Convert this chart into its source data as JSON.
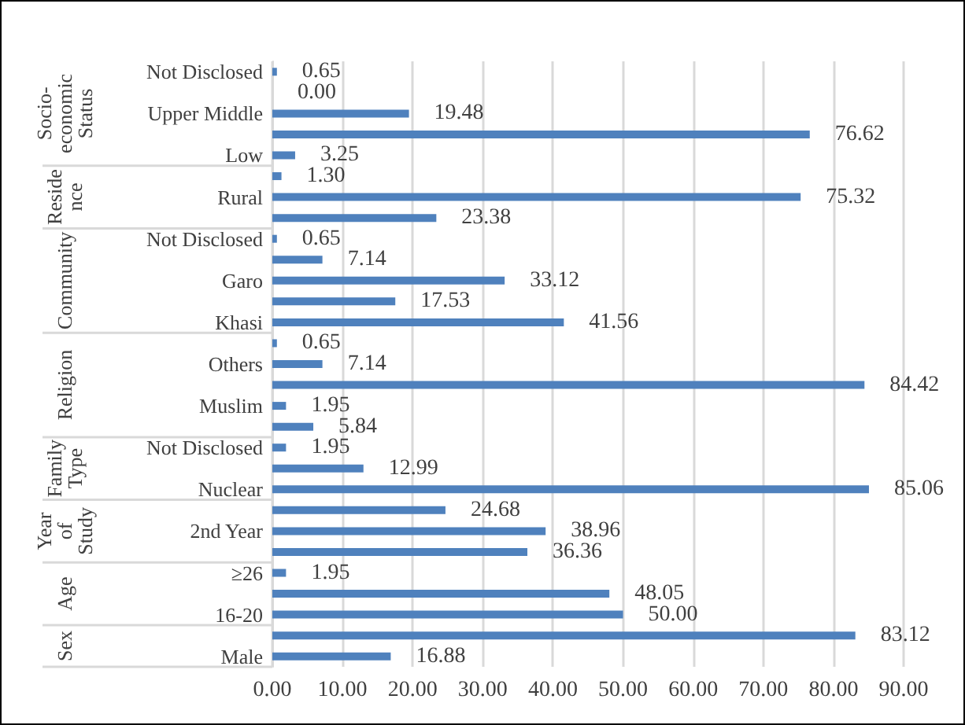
{
  "chart_data": {
    "type": "bar",
    "orientation": "horizontal",
    "categories": [
      "Not Disclosed",
      null,
      "Upper Middle",
      null,
      "Low",
      null,
      "Rural",
      null,
      "Not Disclosed",
      null,
      "Garo",
      null,
      "Khasi",
      null,
      "Others",
      null,
      "Muslim",
      null,
      "Not Disclosed",
      null,
      "Nuclear",
      null,
      "2nd Year",
      null,
      "≥26",
      null,
      "16-20",
      null,
      "Male"
    ],
    "series": [
      {
        "color": "#4f81bd",
        "values": [
          0.65,
          0.0,
          19.48,
          76.62,
          3.25,
          1.3,
          75.32,
          23.38,
          0.65,
          7.14,
          33.12,
          17.53,
          41.56,
          0.65,
          7.14,
          84.42,
          1.95,
          5.84,
          1.95,
          12.99,
          85.06,
          24.68,
          38.96,
          36.36,
          1.95,
          48.05,
          50.0,
          83.12,
          16.88
        ],
        "value_labels": [
          "0.65",
          "0.00",
          "19.48",
          "76.62",
          "3.25",
          "1.30",
          "75.32",
          "23.38",
          "0.65",
          "7.14",
          "33.12",
          "17.53",
          "41.56",
          "0.65",
          "7.14",
          "84.42",
          "1.95",
          "5.84",
          "1.95",
          "12.99",
          "85.06",
          "24.68",
          "38.96",
          "36.36",
          "1.95",
          "48.05",
          "50.00",
          "83.12",
          "16.88"
        ]
      }
    ],
    "xlim": [
      0,
      90
    ],
    "xticks": [
      {
        "value": 0,
        "label": "0.00"
      },
      {
        "value": 10,
        "label": "10.00"
      },
      {
        "value": 20,
        "label": "20.00"
      },
      {
        "value": 30,
        "label": "30.00"
      },
      {
        "value": 40,
        "label": "40.00"
      },
      {
        "value": 50,
        "label": "50.00"
      },
      {
        "value": 60,
        "label": "60.00"
      },
      {
        "value": 70,
        "label": "70.00"
      },
      {
        "value": 80,
        "label": "80.00"
      },
      {
        "value": 90,
        "label": "90.00"
      }
    ],
    "grid": "x",
    "annotations": [
      "Socio-\neconomic\nStatus",
      "Reside\nnce",
      "Community",
      "Religion",
      "Family\nType",
      "Year\nof\nStudy",
      "Age",
      "Sex"
    ]
  }
}
